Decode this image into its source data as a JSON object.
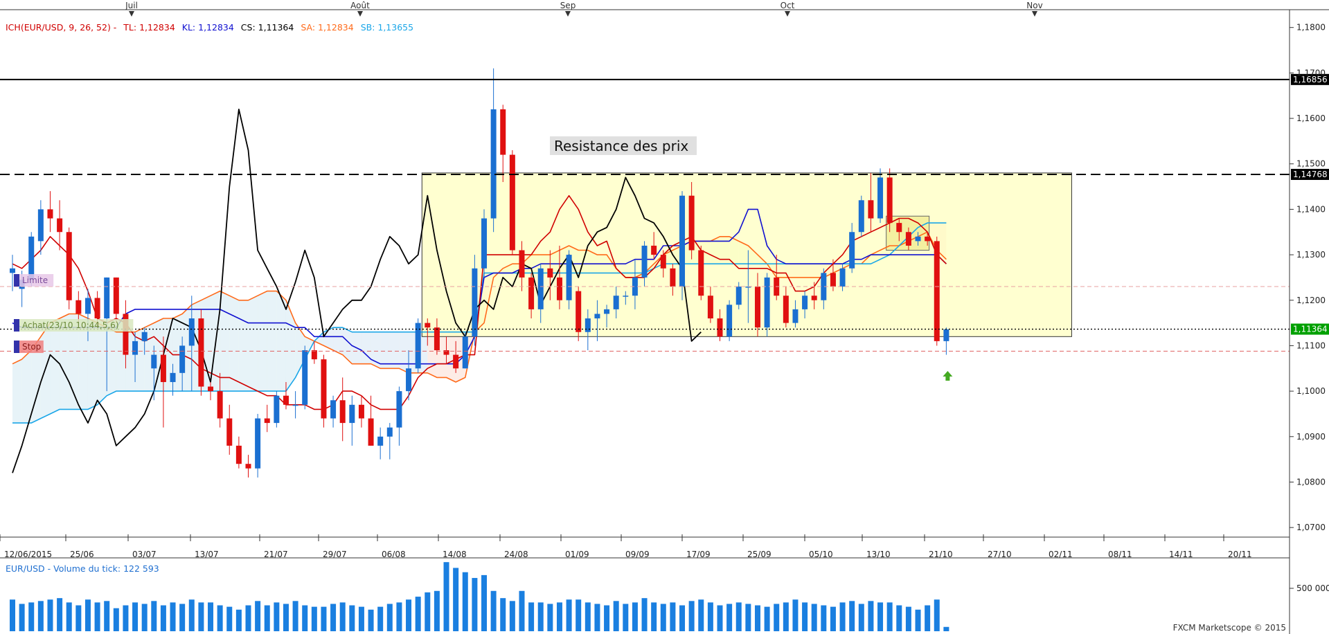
{
  "legend": {
    "indicator": "ICH(EUR/USD, 9, 26, 52) -",
    "tl": "TL: 1,12834",
    "kl": "KL: 1,12834",
    "cs": "CS: 1,11364",
    "sa": "SA: 1,12834",
    "sb": "SB: 1,13655",
    "colors": {
      "tl": "#d00000",
      "kl": "#1010d0",
      "cs": "#000000",
      "sa": "#ff6a1a",
      "sb": "#1aa6e8"
    }
  },
  "volume_panel": {
    "title": "EUR/USD - Volume du tick: 122 593",
    "tick_label": "500 000"
  },
  "footer": "FXCM Marketscope © 2015",
  "annotation": "Resistance des prix",
  "order_markers": {
    "limite": "Limite",
    "achat": "Achat(23/10 10:44,5,6)",
    "stop": "Stop"
  },
  "chart_data": {
    "type": "candlestick",
    "symbol": "EUR/USD",
    "month_labels": [
      "Juil",
      "Août",
      "Sep",
      "Oct",
      "Nov"
    ],
    "x_tick_labels": [
      "12/06/2015",
      "25/06",
      "03/07",
      "13/07",
      "21/07",
      "29/07",
      "06/08",
      "14/08",
      "24/08",
      "01/09",
      "09/09",
      "17/09",
      "25/09",
      "05/10",
      "13/10",
      "21/10",
      "27/10",
      "02/11",
      "08/11",
      "14/11",
      "20/11"
    ],
    "y_tick_labels": [
      "1,1800",
      "1,1700",
      "1,1600",
      "1,1500",
      "1,1400",
      "1,1300",
      "1,1200",
      "1,1100",
      "1,1000",
      "1,0900",
      "1,0800",
      "1,0700"
    ],
    "ylim": [
      1.0685,
      1.183
    ],
    "price_tags": [
      {
        "value": 1.16856,
        "label": "1,16856",
        "style": "solid"
      },
      {
        "value": 1.14768,
        "label": "1,14768",
        "style": "dashed"
      },
      {
        "value": 1.11364,
        "label": "1,11364",
        "style": "dotted"
      }
    ],
    "resistance_box": {
      "from_bar": 44,
      "to_bar": 112,
      "top": 1.148,
      "bottom": 1.112
    },
    "candles": [
      [
        1.126,
        1.13,
        1.122,
        1.127
      ],
      [
        1.1225,
        1.1265,
        1.1185,
        1.1245
      ],
      [
        1.1245,
        1.135,
        1.123,
        1.134
      ],
      [
        1.133,
        1.142,
        1.13,
        1.14
      ],
      [
        1.14,
        1.144,
        1.135,
        1.138
      ],
      [
        1.138,
        1.142,
        1.131,
        1.135
      ],
      [
        1.135,
        1.136,
        1.118,
        1.12
      ],
      [
        1.12,
        1.122,
        1.114,
        1.117
      ],
      [
        1.117,
        1.1225,
        1.111,
        1.1205
      ],
      [
        1.1205,
        1.122,
        1.114,
        1.116
      ],
      [
        1.116,
        1.125,
        1.1,
        1.125
      ],
      [
        1.125,
        1.125,
        1.115,
        1.117
      ],
      [
        1.117,
        1.12,
        1.105,
        1.108
      ],
      [
        1.108,
        1.113,
        1.102,
        1.111
      ],
      [
        1.111,
        1.114,
        1.108,
        1.113
      ],
      [
        1.105,
        1.11,
        1.098,
        1.108
      ],
      [
        1.108,
        1.112,
        1.092,
        1.102
      ],
      [
        1.102,
        1.106,
        1.099,
        1.104
      ],
      [
        1.104,
        1.112,
        1.1,
        1.11
      ],
      [
        1.11,
        1.121,
        1.1,
        1.116
      ],
      [
        1.116,
        1.118,
        1.099,
        1.101
      ],
      [
        1.101,
        1.102,
        1.098,
        1.1
      ],
      [
        1.1,
        1.104,
        1.092,
        1.094
      ],
      [
        1.094,
        1.097,
        1.086,
        1.088
      ],
      [
        1.088,
        1.09,
        1.083,
        1.084
      ],
      [
        1.084,
        1.086,
        1.081,
        1.083
      ],
      [
        1.083,
        1.095,
        1.081,
        1.094
      ],
      [
        1.094,
        1.097,
        1.091,
        1.093
      ],
      [
        1.093,
        1.1,
        1.092,
        1.099
      ],
      [
        1.099,
        1.102,
        1.096,
        1.097
      ],
      [
        1.097,
        1.1,
        1.094,
        1.097
      ],
      [
        1.097,
        1.11,
        1.096,
        1.109
      ],
      [
        1.109,
        1.111,
        1.106,
        1.107
      ],
      [
        1.107,
        1.108,
        1.092,
        1.094
      ],
      [
        1.094,
        1.099,
        1.092,
        1.098
      ],
      [
        1.098,
        1.103,
        1.089,
        1.093
      ],
      [
        1.093,
        1.099,
        1.088,
        1.097
      ],
      [
        1.097,
        1.099,
        1.092,
        1.094
      ],
      [
        1.094,
        1.099,
        1.088,
        1.088
      ],
      [
        1.088,
        1.092,
        1.085,
        1.09
      ],
      [
        1.09,
        1.093,
        1.085,
        1.092
      ],
      [
        1.092,
        1.101,
        1.088,
        1.1
      ],
      [
        1.1,
        1.109,
        1.098,
        1.105
      ],
      [
        1.105,
        1.116,
        1.104,
        1.115
      ],
      [
        1.115,
        1.116,
        1.11,
        1.114
      ],
      [
        1.114,
        1.116,
        1.108,
        1.109
      ],
      [
        1.109,
        1.112,
        1.106,
        1.108
      ],
      [
        1.108,
        1.111,
        1.104,
        1.105
      ],
      [
        1.105,
        1.113,
        1.105,
        1.112
      ],
      [
        1.112,
        1.13,
        1.11,
        1.127
      ],
      [
        1.127,
        1.14,
        1.125,
        1.138
      ],
      [
        1.138,
        1.171,
        1.135,
        1.162
      ],
      [
        1.162,
        1.163,
        1.146,
        1.152
      ],
      [
        1.152,
        1.153,
        1.13,
        1.131
      ],
      [
        1.131,
        1.133,
        1.122,
        1.125
      ],
      [
        1.125,
        1.126,
        1.116,
        1.118
      ],
      [
        1.118,
        1.128,
        1.115,
        1.127
      ],
      [
        1.127,
        1.131,
        1.12,
        1.125
      ],
      [
        1.125,
        1.132,
        1.118,
        1.12
      ],
      [
        1.12,
        1.131,
        1.118,
        1.13
      ],
      [
        1.122,
        1.123,
        1.111,
        1.113
      ],
      [
        1.113,
        1.118,
        1.109,
        1.116
      ],
      [
        1.116,
        1.12,
        1.111,
        1.117
      ],
      [
        1.117,
        1.119,
        1.114,
        1.118
      ],
      [
        1.118,
        1.123,
        1.116,
        1.121
      ],
      [
        1.121,
        1.122,
        1.119,
        1.121
      ],
      [
        1.121,
        1.129,
        1.118,
        1.125
      ],
      [
        1.125,
        1.133,
        1.123,
        1.132
      ],
      [
        1.132,
        1.135,
        1.129,
        1.13
      ],
      [
        1.13,
        1.131,
        1.125,
        1.127
      ],
      [
        1.127,
        1.128,
        1.121,
        1.123
      ],
      [
        1.123,
        1.144,
        1.12,
        1.143
      ],
      [
        1.143,
        1.146,
        1.129,
        1.131
      ],
      [
        1.131,
        1.132,
        1.12,
        1.121
      ],
      [
        1.121,
        1.123,
        1.115,
        1.116
      ],
      [
        1.116,
        1.118,
        1.111,
        1.112
      ],
      [
        1.112,
        1.12,
        1.111,
        1.119
      ],
      [
        1.119,
        1.124,
        1.118,
        1.123
      ],
      [
        1.123,
        1.131,
        1.115,
        1.123
      ],
      [
        1.123,
        1.126,
        1.112,
        1.114
      ],
      [
        1.114,
        1.126,
        1.112,
        1.125
      ],
      [
        1.125,
        1.13,
        1.12,
        1.121
      ],
      [
        1.121,
        1.123,
        1.114,
        1.115
      ],
      [
        1.115,
        1.12,
        1.114,
        1.118
      ],
      [
        1.118,
        1.122,
        1.116,
        1.121
      ],
      [
        1.121,
        1.124,
        1.118,
        1.12
      ],
      [
        1.12,
        1.127,
        1.118,
        1.126
      ],
      [
        1.126,
        1.129,
        1.122,
        1.123
      ],
      [
        1.123,
        1.128,
        1.122,
        1.127
      ],
      [
        1.127,
        1.137,
        1.126,
        1.135
      ],
      [
        1.135,
        1.143,
        1.134,
        1.142
      ],
      [
        1.142,
        1.148,
        1.135,
        1.138
      ],
      [
        1.138,
        1.149,
        1.137,
        1.147
      ],
      [
        1.147,
        1.149,
        1.135,
        1.137
      ],
      [
        1.137,
        1.138,
        1.133,
        1.135
      ],
      [
        1.135,
        1.136,
        1.131,
        1.132
      ],
      [
        1.133,
        1.135,
        1.132,
        1.134
      ],
      [
        1.134,
        1.135,
        1.132,
        1.133
      ],
      [
        1.133,
        1.134,
        1.11,
        1.111
      ],
      [
        1.111,
        1.114,
        1.108,
        1.1136
      ]
    ],
    "indicators": {
      "tenkan_TL": [
        1.128,
        1.127,
        1.129,
        1.131,
        1.134,
        1.132,
        1.13,
        1.127,
        1.122,
        1.116,
        1.115,
        1.116,
        1.115,
        1.112,
        1.111,
        1.112,
        1.11,
        1.108,
        1.108,
        1.107,
        1.105,
        1.104,
        1.103,
        1.103,
        1.102,
        1.101,
        1.1,
        1.099,
        1.099,
        1.097,
        1.097,
        1.097,
        1.096,
        1.096,
        1.097,
        1.1,
        1.1,
        1.099,
        1.097,
        1.096,
        1.096,
        1.096,
        1.099,
        1.103,
        1.105,
        1.106,
        1.106,
        1.107,
        1.108,
        1.108,
        1.13,
        1.13,
        1.13,
        1.13,
        1.13,
        1.13,
        1.133,
        1.135,
        1.14,
        1.143,
        1.14,
        1.135,
        1.132,
        1.133,
        1.127,
        1.125,
        1.125,
        1.125,
        1.127,
        1.13,
        1.132,
        1.133,
        1.134,
        1.131,
        1.13,
        1.129,
        1.129,
        1.127,
        1.127,
        1.127,
        1.127,
        1.126,
        1.126,
        1.122,
        1.122,
        1.123,
        1.126,
        1.128,
        1.13,
        1.133,
        1.134,
        1.135,
        1.136,
        1.137,
        1.138,
        1.138,
        1.137,
        1.135,
        1.13,
        1.128
      ],
      "kijun_KL": [
        1.115,
        1.114,
        1.114,
        1.114,
        1.114,
        1.114,
        1.114,
        1.114,
        1.114,
        1.114,
        1.114,
        1.114,
        1.117,
        1.118,
        1.118,
        1.118,
        1.118,
        1.118,
        1.118,
        1.118,
        1.118,
        1.118,
        1.118,
        1.117,
        1.116,
        1.115,
        1.115,
        1.115,
        1.115,
        1.115,
        1.114,
        1.114,
        1.112,
        1.112,
        1.112,
        1.112,
        1.11,
        1.109,
        1.107,
        1.106,
        1.106,
        1.106,
        1.106,
        1.106,
        1.106,
        1.106,
        1.106,
        1.106,
        1.108,
        1.112,
        1.125,
        1.126,
        1.126,
        1.126,
        1.127,
        1.127,
        1.128,
        1.128,
        1.128,
        1.128,
        1.128,
        1.128,
        1.128,
        1.128,
        1.128,
        1.128,
        1.129,
        1.129,
        1.129,
        1.132,
        1.132,
        1.132,
        1.133,
        1.133,
        1.133,
        1.133,
        1.133,
        1.135,
        1.14,
        1.14,
        1.132,
        1.129,
        1.128,
        1.128,
        1.128,
        1.128,
        1.128,
        1.128,
        1.128,
        1.129,
        1.129,
        1.13,
        1.13,
        1.13,
        1.13,
        1.13,
        1.13,
        1.13,
        1.13,
        1.128
      ],
      "chikou_CS": [
        1.082,
        1.088,
        1.095,
        1.102,
        1.108,
        1.106,
        1.102,
        1.097,
        1.093,
        1.098,
        1.095,
        1.088,
        1.09,
        1.092,
        1.095,
        1.1,
        1.108,
        1.116,
        1.115,
        1.114,
        1.109,
        1.102,
        1.118,
        1.145,
        1.162,
        1.153,
        1.131,
        1.127,
        1.123,
        1.118,
        1.124,
        1.131,
        1.125,
        1.112,
        1.115,
        1.118,
        1.12,
        1.12,
        1.123,
        1.129,
        1.134,
        1.132,
        1.128,
        1.13,
        1.143,
        1.131,
        1.122,
        1.115,
        1.112,
        1.118,
        1.12,
        1.118,
        1.125,
        1.123,
        1.128,
        1.127,
        1.119,
        1.123,
        1.127,
        1.13,
        1.125,
        1.132,
        1.135,
        1.136,
        1.14,
        1.147,
        1.143,
        1.138,
        1.137,
        1.134,
        1.13,
        1.127,
        1.111,
        1.113,
        null,
        null,
        null,
        null,
        null,
        null,
        null,
        null,
        null,
        null,
        null,
        null,
        null,
        null,
        null,
        null,
        null,
        null,
        null,
        null,
        null,
        null,
        null,
        null,
        null,
        null
      ],
      "senkou_SA": [
        1.106,
        1.107,
        1.109,
        1.112,
        1.115,
        1.116,
        1.117,
        1.117,
        1.116,
        1.115,
        1.114,
        1.113,
        1.113,
        1.113,
        1.114,
        1.115,
        1.116,
        1.116,
        1.117,
        1.119,
        1.12,
        1.121,
        1.122,
        1.121,
        1.12,
        1.12,
        1.121,
        1.122,
        1.122,
        1.12,
        1.115,
        1.112,
        1.111,
        1.11,
        1.109,
        1.108,
        1.106,
        1.106,
        1.106,
        1.105,
        1.105,
        1.105,
        1.104,
        1.104,
        1.104,
        1.103,
        1.103,
        1.102,
        1.103,
        1.113,
        1.115,
        1.125,
        1.127,
        1.128,
        1.128,
        1.13,
        1.13,
        1.13,
        1.131,
        1.132,
        1.131,
        1.131,
        1.13,
        1.13,
        1.127,
        1.125,
        1.125,
        1.126,
        1.128,
        1.13,
        1.131,
        1.132,
        1.133,
        1.133,
        1.133,
        1.134,
        1.134,
        1.133,
        1.132,
        1.13,
        1.128,
        1.125,
        1.125,
        1.125,
        1.125,
        1.125,
        1.125,
        1.126,
        1.127,
        1.128,
        1.128,
        1.13,
        1.131,
        1.132,
        1.132,
        1.133,
        1.134,
        1.135,
        1.131,
        1.129
      ],
      "senkou_SB": [
        1.093,
        1.093,
        1.093,
        1.094,
        1.095,
        1.096,
        1.096,
        1.096,
        1.096,
        1.097,
        1.099,
        1.1,
        1.1,
        1.1,
        1.1,
        1.1,
        1.1,
        1.1,
        1.1,
        1.1,
        1.1,
        1.1,
        1.1,
        1.1,
        1.1,
        1.1,
        1.1,
        1.1,
        1.1,
        1.1,
        1.103,
        1.107,
        1.111,
        1.113,
        1.114,
        1.114,
        1.113,
        1.113,
        1.113,
        1.113,
        1.113,
        1.113,
        1.113,
        1.113,
        1.113,
        1.113,
        1.113,
        1.113,
        1.113,
        1.113,
        1.126,
        1.126,
        1.126,
        1.126,
        1.126,
        1.126,
        1.126,
        1.126,
        1.126,
        1.126,
        1.126,
        1.126,
        1.126,
        1.126,
        1.126,
        1.126,
        1.126,
        1.126,
        1.127,
        1.128,
        1.128,
        1.128,
        1.128,
        1.128,
        1.128,
        1.128,
        1.128,
        1.128,
        1.128,
        1.128,
        1.128,
        1.128,
        1.128,
        1.128,
        1.128,
        1.128,
        1.128,
        1.128,
        1.128,
        1.128,
        1.128,
        1.128,
        1.129,
        1.13,
        1.132,
        1.134,
        1.136,
        1.137,
        1.137,
        1.137
      ]
    },
    "volume": [
      44,
      38,
      40,
      42,
      44,
      46,
      40,
      36,
      44,
      40,
      42,
      32,
      36,
      40,
      38,
      42,
      36,
      40,
      38,
      44,
      40,
      40,
      36,
      34,
      30,
      36,
      42,
      36,
      40,
      38,
      42,
      36,
      34,
      34,
      38,
      40,
      36,
      34,
      30,
      34,
      38,
      40,
      44,
      48,
      54,
      56,
      96,
      88,
      82,
      74,
      78,
      56,
      46,
      42,
      56,
      40,
      40,
      38,
      40,
      44,
      44,
      40,
      38,
      36,
      42,
      38,
      40,
      46,
      40,
      38,
      40,
      36,
      42,
      44,
      40,
      36,
      38,
      40,
      38,
      36,
      34,
      38,
      40,
      44,
      40,
      38,
      36,
      34,
      40,
      42,
      38,
      42,
      40,
      40,
      36,
      34,
      30,
      36,
      44,
      6
    ]
  }
}
